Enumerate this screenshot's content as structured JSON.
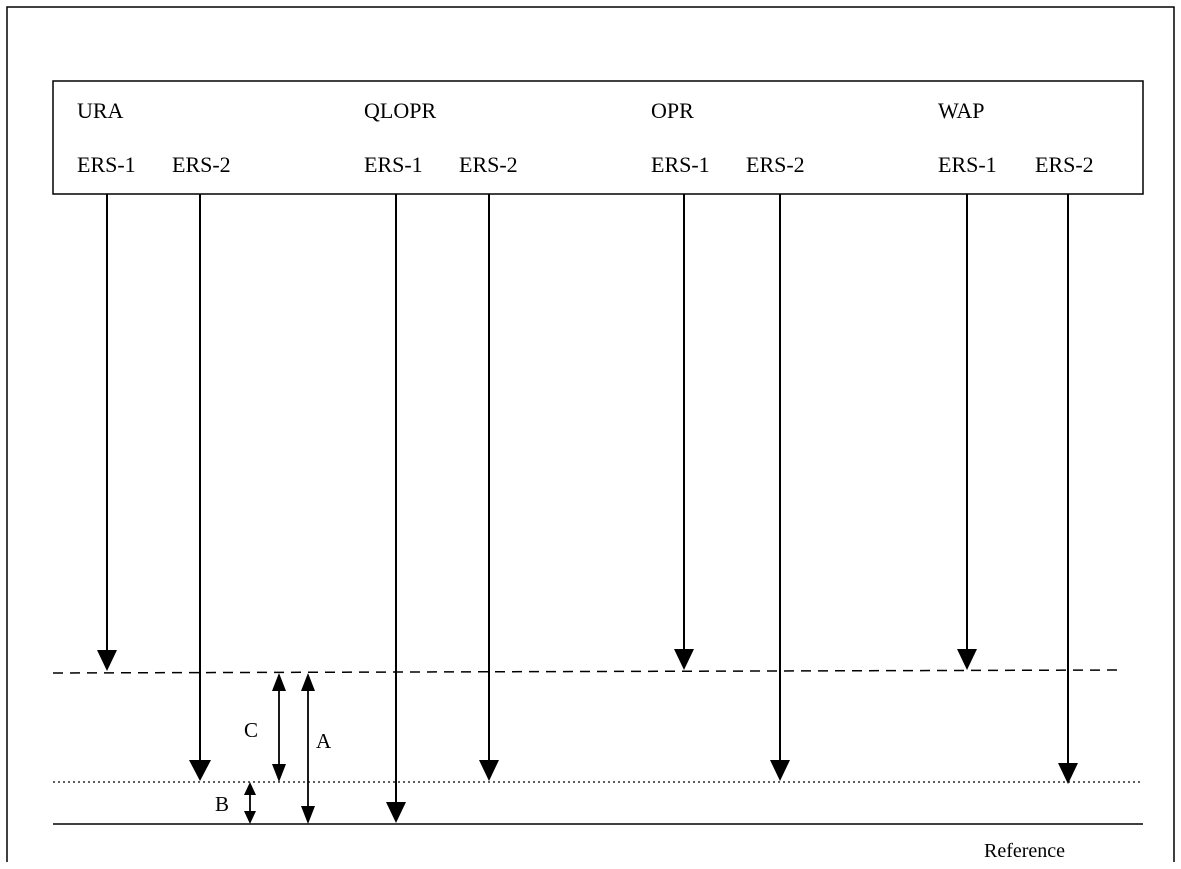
{
  "header": {
    "groups": [
      {
        "name": "URA",
        "sublabels": [
          "ERS-1",
          "ERS-2"
        ]
      },
      {
        "name": "QLOPR",
        "sublabels": [
          "ERS-1",
          "ERS-2"
        ]
      },
      {
        "name": "OPR",
        "sublabels": [
          "ERS-1",
          "ERS-2"
        ]
      },
      {
        "name": "WAP",
        "sublabels": [
          "ERS-1",
          "ERS-2"
        ]
      }
    ]
  },
  "levels": {
    "reference_label": "Reference"
  },
  "dimensions": {
    "a_label": "A",
    "b_label": "B",
    "c_label": "C"
  }
}
